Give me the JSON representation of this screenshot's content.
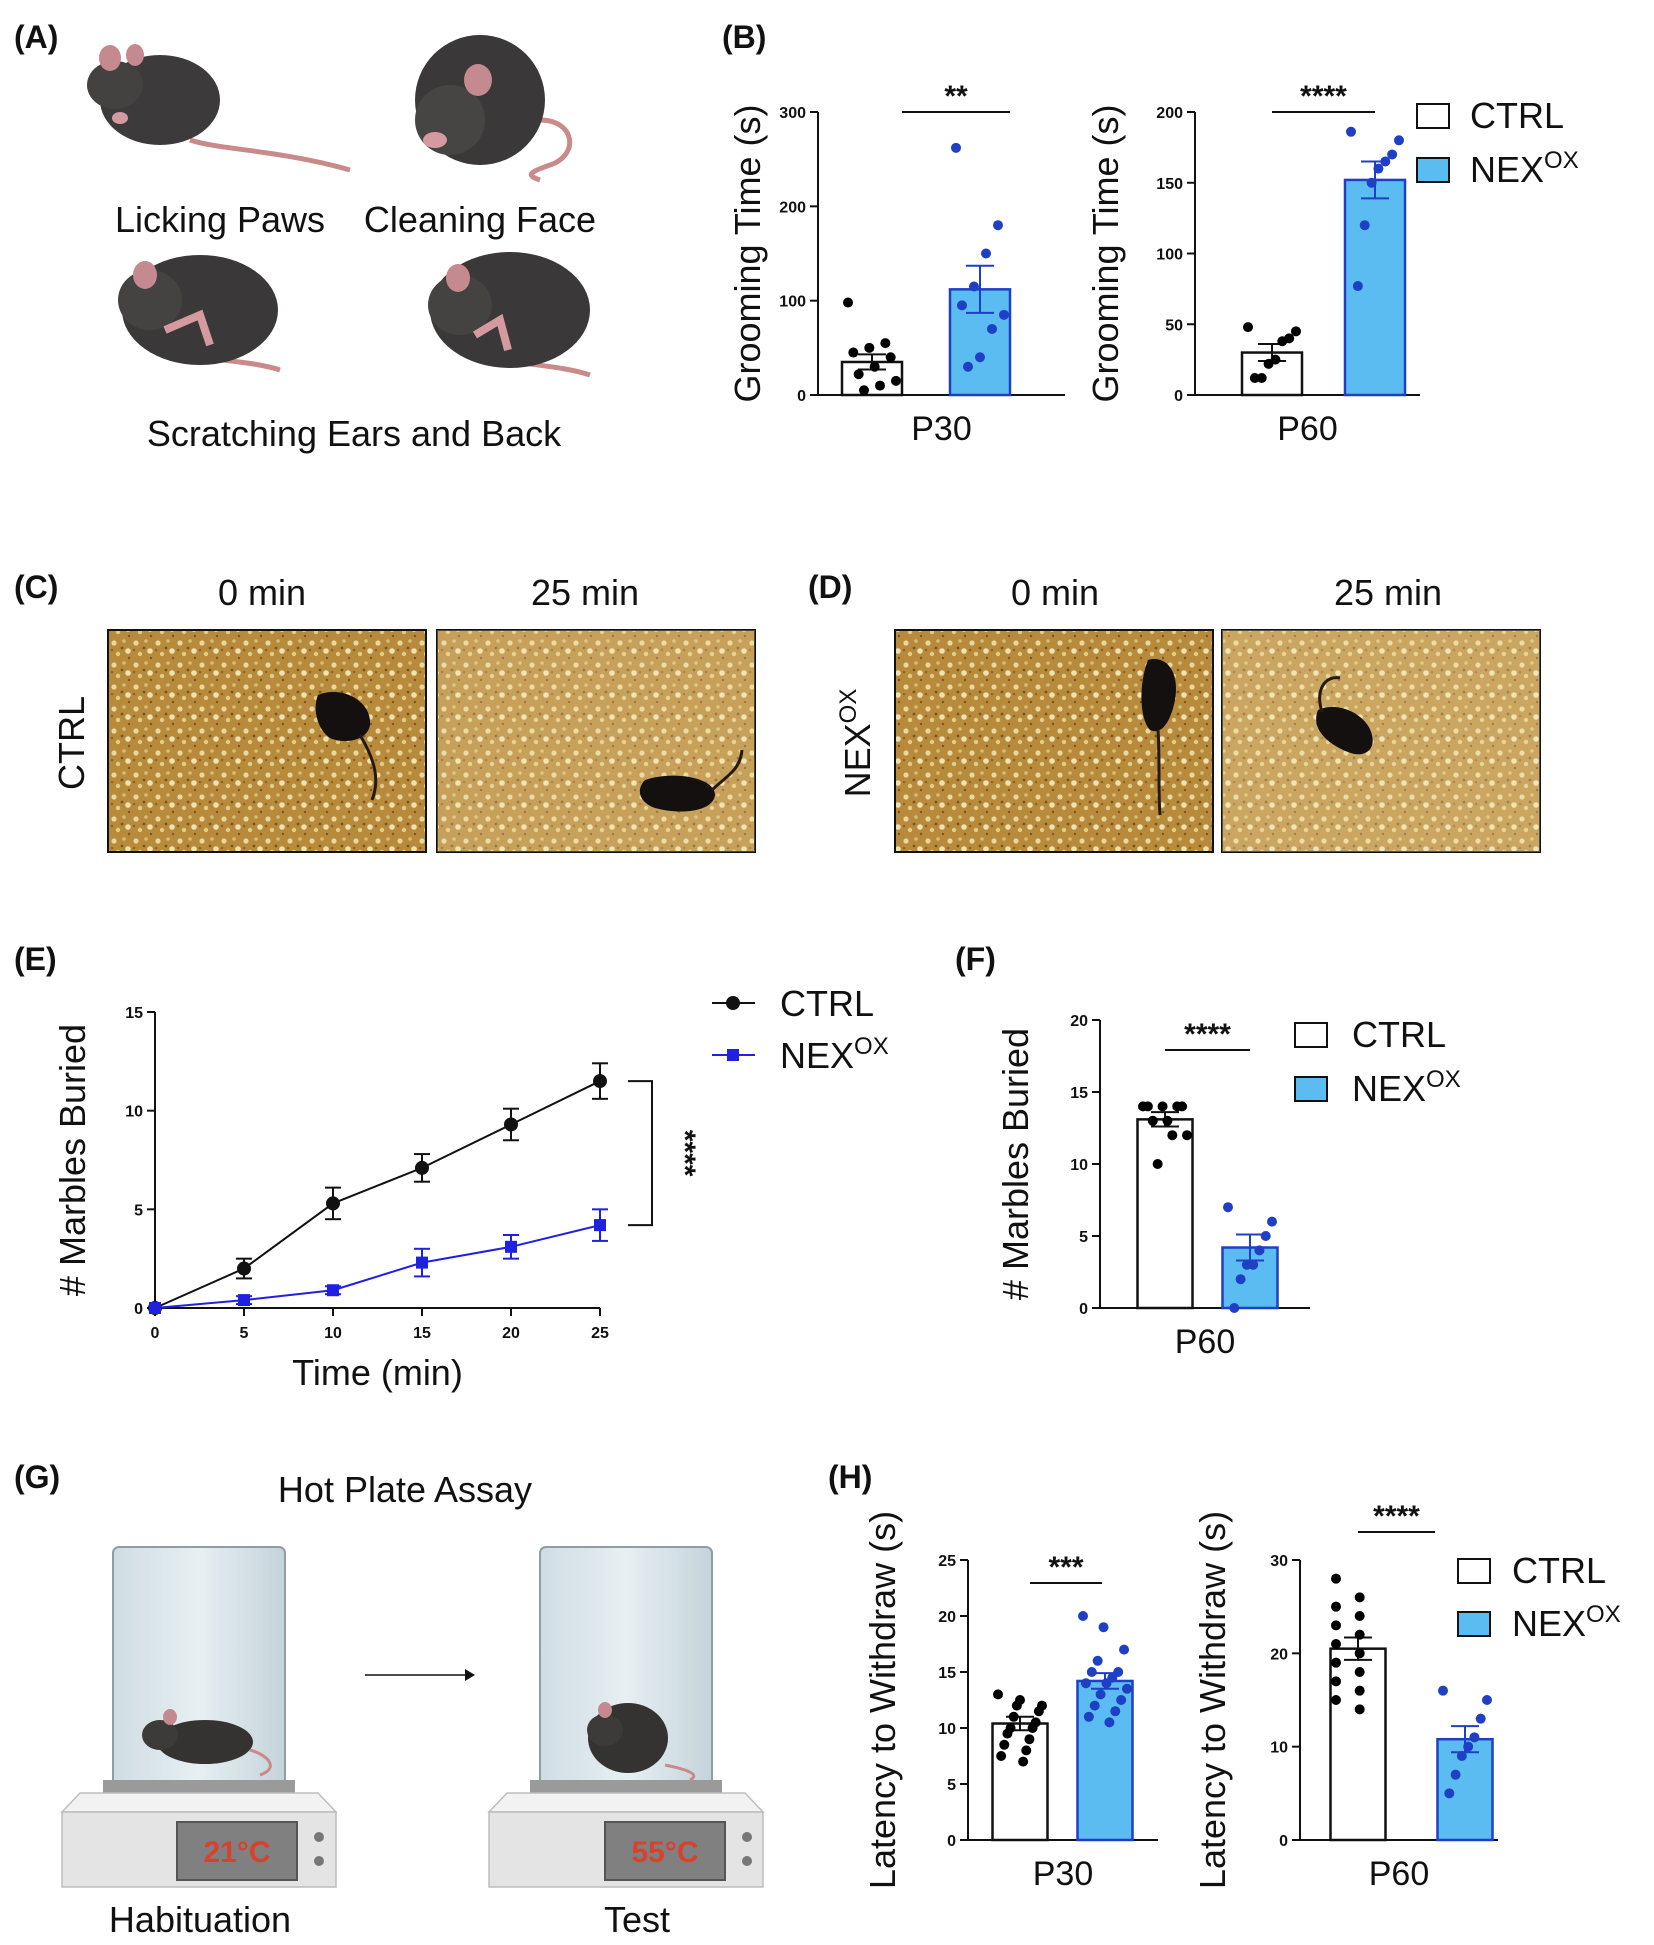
{
  "panel_labels": {
    "A": "(A)",
    "B": "(B)",
    "C": "(C)",
    "D": "(D)",
    "E": "(E)",
    "F": "(F)",
    "G": "(G)",
    "H": "(H)"
  },
  "panel_a": {
    "captions": [
      "Licking Paws",
      "Cleaning Face",
      "Scratching Ears and Back"
    ]
  },
  "panel_cd": {
    "time_labels": [
      "0 min",
      "25 min"
    ],
    "row_label_ctrl": "CTRL",
    "row_label_nex": "NEX",
    "row_label_nex_sup": "OX"
  },
  "panel_g": {
    "title": "Hot Plate Assay",
    "habituation_label": "Habituation",
    "test_label": "Test",
    "habituation_temp": "21°C",
    "test_temp": "55°C"
  },
  "legend": {
    "ctrl": "CTRL",
    "nex": "NEX",
    "nex_sup": "OX"
  },
  "colors": {
    "ctrl_fill": "#ffffff",
    "nex_fill": "#5bbcf2",
    "ctrl_dot": "#000000",
    "nex_dot": "#1f3fc4",
    "nex_line": "#2020e0"
  },
  "chart_data": [
    {
      "id": "B1",
      "type": "bar",
      "title": "",
      "ylabel": "Grooming Time (s)",
      "xlabel": "P30",
      "ylim": [
        0,
        300
      ],
      "yticks": [
        0,
        100,
        200,
        300
      ],
      "categories": [
        "CTRL",
        "NEX"
      ],
      "values": [
        35,
        112
      ],
      "sem": [
        8,
        25
      ],
      "points": [
        [
          98,
          55,
          50,
          45,
          40,
          30,
          22,
          15,
          10,
          5
        ],
        [
          262,
          180,
          150,
          115,
          95,
          85,
          70,
          40,
          30
        ]
      ],
      "significance": "**"
    },
    {
      "id": "B2",
      "type": "bar",
      "title": "",
      "ylabel": "Grooming Time (s)",
      "xlabel": "P60",
      "ylim": [
        0,
        200
      ],
      "yticks": [
        0,
        50,
        100,
        150,
        200
      ],
      "categories": [
        "CTRL",
        "NEX"
      ],
      "values": [
        30,
        152
      ],
      "sem": [
        6,
        13
      ],
      "points": [
        [
          48,
          45,
          40,
          38,
          25,
          22,
          12,
          12
        ],
        [
          186,
          180,
          170,
          165,
          160,
          150,
          120,
          77
        ]
      ],
      "significance": "****"
    },
    {
      "id": "E",
      "type": "line",
      "title": "",
      "ylabel": "# Marbles Buried",
      "xlabel": "Time (min)",
      "x": [
        0,
        5,
        10,
        15,
        20,
        25
      ],
      "xlim": [
        0,
        25
      ],
      "ylim": [
        0,
        15
      ],
      "yticks": [
        0,
        5,
        10,
        15
      ],
      "series": [
        {
          "name": "CTRL",
          "values": [
            0,
            2.0,
            5.3,
            7.1,
            9.3,
            11.5
          ],
          "sem": [
            0,
            0.5,
            0.8,
            0.7,
            0.8,
            0.9
          ]
        },
        {
          "name": "NEX",
          "values": [
            0,
            0.4,
            0.9,
            2.3,
            3.1,
            4.2
          ],
          "sem": [
            0,
            0.2,
            0.2,
            0.7,
            0.6,
            0.8
          ]
        }
      ],
      "significance": "****"
    },
    {
      "id": "F",
      "type": "bar",
      "title": "",
      "ylabel": "# Marbles Buried",
      "xlabel": "P60",
      "ylim": [
        0,
        20
      ],
      "yticks": [
        0,
        5,
        10,
        15,
        20
      ],
      "categories": [
        "CTRL",
        "NEX"
      ],
      "values": [
        13.1,
        4.2
      ],
      "sem": [
        0.5,
        0.9
      ],
      "points": [
        [
          14,
          14,
          14,
          14,
          14,
          13,
          13,
          12,
          12,
          10
        ],
        [
          7,
          6,
          5,
          4,
          3,
          3,
          2,
          0
        ]
      ],
      "significance": "****"
    },
    {
      "id": "H1",
      "type": "bar",
      "title": "",
      "ylabel": "Latency to Withdraw (s)",
      "xlabel": "P30",
      "ylim": [
        0,
        25
      ],
      "yticks": [
        0,
        5,
        10,
        15,
        20,
        25
      ],
      "categories": [
        "CTRL",
        "NEX"
      ],
      "values": [
        10.4,
        14.2
      ],
      "sem": [
        0.6,
        0.7
      ],
      "points": [
        [
          13,
          12.5,
          12,
          12,
          11.5,
          11,
          10.5,
          10,
          10,
          9.5,
          9,
          8.5,
          8,
          7.5,
          7
        ],
        [
          20,
          19,
          17,
          16,
          15,
          15,
          14.5,
          14,
          14,
          13.5,
          13,
          12.5,
          12,
          11.5,
          11,
          10.5
        ]
      ],
      "significance": "***"
    },
    {
      "id": "H2",
      "type": "bar",
      "title": "",
      "ylabel": "Latency to Withdraw (s)",
      "xlabel": "P60",
      "ylim": [
        0,
        30
      ],
      "yticks": [
        0,
        10,
        20,
        30
      ],
      "categories": [
        "CTRL",
        "NEX"
      ],
      "values": [
        20.5,
        10.8
      ],
      "sem": [
        1.2,
        1.4
      ],
      "points": [
        [
          28,
          26,
          25,
          24,
          23,
          22,
          21,
          20,
          19,
          18,
          17,
          16,
          15,
          14
        ],
        [
          16,
          15,
          13,
          11,
          10,
          9,
          7,
          5
        ]
      ],
      "significance": "****"
    }
  ]
}
